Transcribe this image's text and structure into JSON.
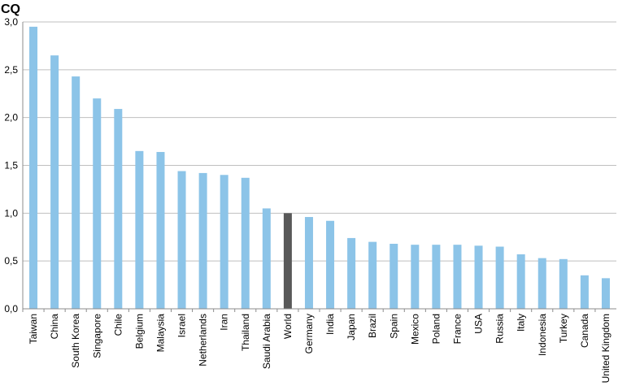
{
  "chart_data": {
    "type": "bar",
    "title": "",
    "xlabel": "",
    "ylabel": "CQ",
    "ylim": [
      0,
      3
    ],
    "yticks": [
      0,
      0.5,
      1,
      1.5,
      2,
      2.5,
      3
    ],
    "ytick_labels": [
      "0,0",
      "0,5",
      "1,0",
      "1,5",
      "2,0",
      "2,5",
      "3,0"
    ],
    "grid": true,
    "legend": "none",
    "bar_color": "#8cc4e8",
    "highlight_color": "#595959",
    "highlight_category": "World",
    "categories": [
      "Taiwan",
      "China",
      "South Korea",
      "Singapore",
      "Chile",
      "Belgium",
      "Malaysia",
      "Israel",
      "Netherlands",
      "Iran",
      "Thailand",
      "Saudi Arabia",
      "World",
      "Germany",
      "India",
      "Japan",
      "Brazil",
      "Spain",
      "Mexico",
      "Poland",
      "France",
      "USA",
      "Russia",
      "Italy",
      "Indonesia",
      "Turkey",
      "Canada",
      "United Kingdom"
    ],
    "values": [
      2.95,
      2.65,
      2.43,
      2.2,
      2.09,
      1.65,
      1.64,
      1.44,
      1.42,
      1.4,
      1.37,
      1.05,
      1.0,
      0.96,
      0.92,
      0.74,
      0.7,
      0.68,
      0.67,
      0.67,
      0.67,
      0.66,
      0.65,
      0.57,
      0.53,
      0.52,
      0.35,
      0.32
    ]
  }
}
